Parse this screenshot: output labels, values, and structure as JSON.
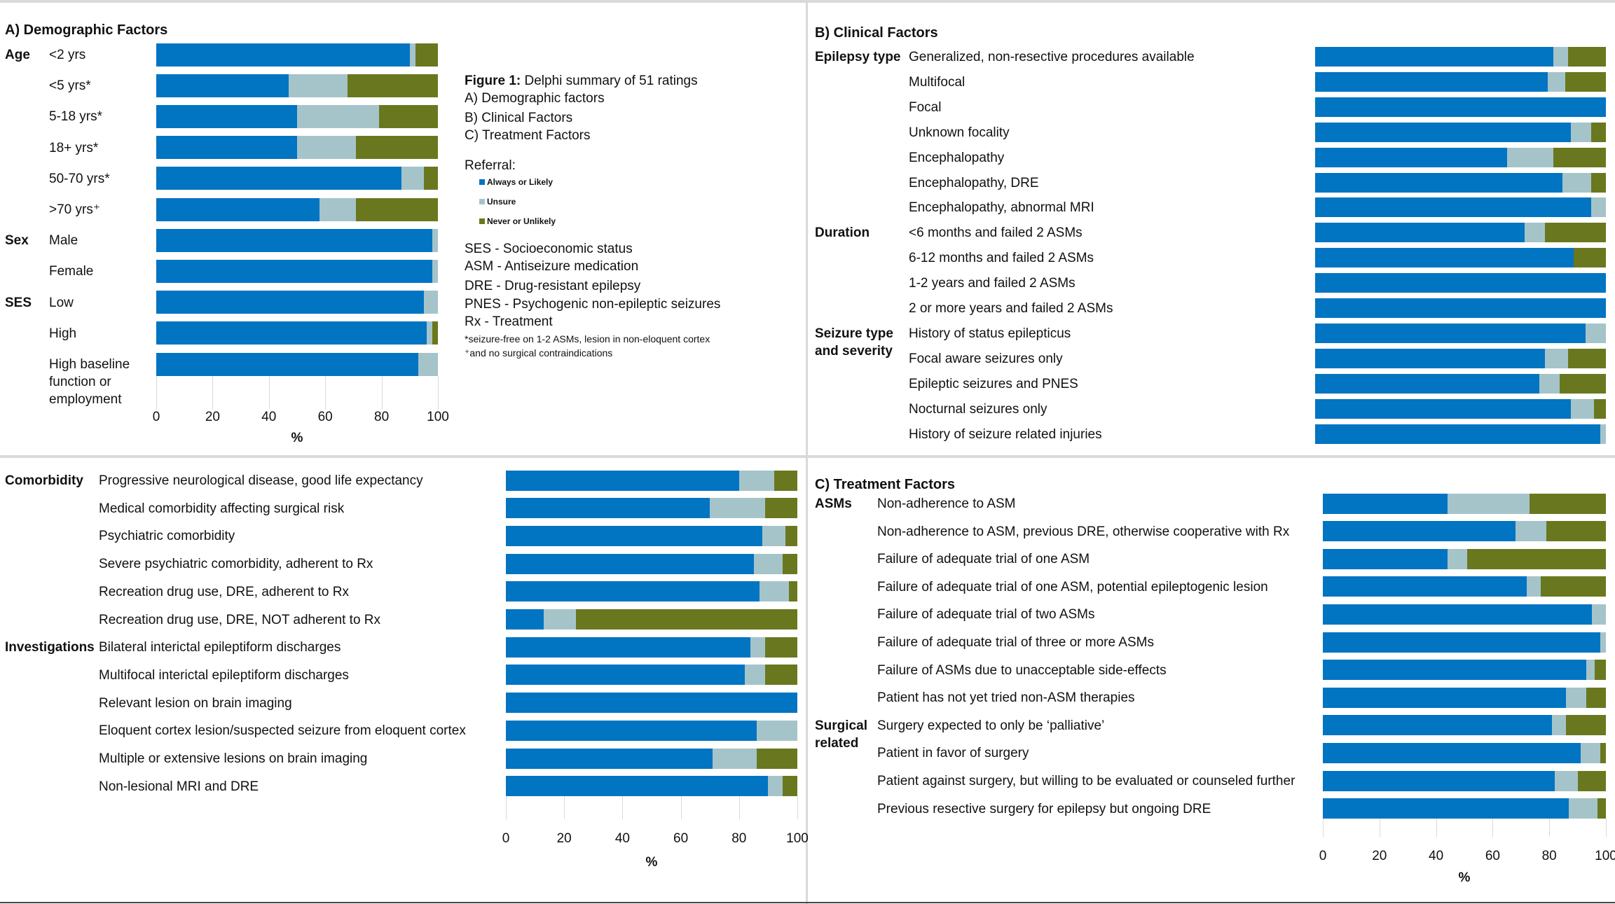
{
  "caption": {
    "figure_label": "Figure 1:",
    "figure_text": " Delphi summary of 51 ratings",
    "parts": [
      "A)   Demographic factors",
      "B)   Clinical Factors",
      "C)   Treatment Factors"
    ]
  },
  "legend": {
    "title": "Referral:",
    "items": [
      {
        "label": "Always or Likely",
        "color": "#0174c2"
      },
      {
        "label": "Unsure",
        "color": "#a5c4ca"
      },
      {
        "label": "Never or Unlikely",
        "color": "#69781e"
      }
    ]
  },
  "abbreviations": [
    "SES - Socioeconomic status",
    "ASM - Antiseizure medication",
    "DRE - Drug-resistant epilepsy",
    "PNES - Psychogenic non-epileptic seizures",
    "Rx - Treatment"
  ],
  "footnotes": [
    "*seizure-free on 1-2 ASMs, lesion in non-eloquent cortex",
    "⁺and no surgical contraindications"
  ],
  "chart_data": [
    {
      "type": "bar",
      "orientation": "horizontal",
      "stacked": true,
      "title": "A) Demographic Factors",
      "series": [
        "Always or Likely",
        "Unsure",
        "Never or Unlikely"
      ],
      "xlabel": "%",
      "xlim": [
        0,
        100
      ],
      "xticks": [
        "0",
        "20",
        "40",
        "60",
        "80",
        "100"
      ],
      "grid": true,
      "groups": [
        {
          "label": "Age",
          "rows": [
            {
              "label": "<2 yrs",
              "values": [
                90,
                2,
                8
              ]
            },
            {
              "label": "<5 yrs*",
              "values": [
                47,
                21,
                32
              ]
            },
            {
              "label": "5-18 yrs*",
              "values": [
                50,
                29,
                21
              ]
            },
            {
              "label": "18+ yrs*",
              "values": [
                50,
                21,
                29
              ]
            },
            {
              "label": "50-70 yrs*",
              "values": [
                87,
                8,
                5
              ]
            },
            {
              "label": ">70 yrs⁺",
              "values": [
                58,
                13,
                29
              ]
            }
          ]
        },
        {
          "label": "Sex",
          "rows": [
            {
              "label": "Male",
              "values": [
                98,
                2,
                0
              ]
            },
            {
              "label": "Female",
              "values": [
                98,
                2,
                0
              ]
            }
          ]
        },
        {
          "label": "SES",
          "rows": [
            {
              "label": "Low",
              "values": [
                95,
                5,
                0
              ]
            },
            {
              "label": "High",
              "values": [
                96,
                2,
                2
              ]
            },
            {
              "label": "High baseline function or employment",
              "values": [
                93,
                7,
                0
              ]
            }
          ]
        }
      ]
    },
    {
      "type": "bar",
      "orientation": "horizontal",
      "stacked": true,
      "title": "B) Clinical Factors",
      "series": [
        "Always or Likely",
        "Unsure",
        "Never or Unlikely"
      ],
      "xlim": [
        0,
        100
      ],
      "grid": false,
      "groups": [
        {
          "label": "Epilepsy type",
          "rows": [
            {
              "label": "Generalized, non-resective procedures available",
              "values": [
                82,
                5,
                13
              ]
            },
            {
              "label": "Multifocal",
              "values": [
                80,
                6,
                14
              ]
            },
            {
              "label": "Focal",
              "values": [
                100,
                0,
                0
              ]
            },
            {
              "label": "Unknown focality",
              "values": [
                88,
                7,
                5
              ]
            },
            {
              "label": "Encephalopathy",
              "values": [
                66,
                16,
                18
              ]
            },
            {
              "label": "Encephalopathy, DRE",
              "values": [
                85,
                10,
                5
              ]
            },
            {
              "label": "Encephalopathy, abnormal MRI",
              "values": [
                95,
                5,
                0
              ]
            }
          ]
        },
        {
          "label": "Duration",
          "rows": [
            {
              "label": "<6 months and failed 2 ASMs",
              "values": [
                72,
                7,
                21
              ]
            },
            {
              "label": "6-12 months and failed 2 ASMs",
              "values": [
                89,
                0,
                11
              ]
            },
            {
              "label": "1-2 years and failed 2 ASMs",
              "values": [
                100,
                0,
                0
              ]
            },
            {
              "label": "2 or more years and failed 2 ASMs",
              "values": [
                100,
                0,
                0
              ]
            }
          ]
        },
        {
          "label": "Seizure type and severity",
          "rows": [
            {
              "label": "History of status epilepticus",
              "values": [
                93,
                7,
                0
              ]
            },
            {
              "label": "Focal aware seizures only",
              "values": [
                79,
                8,
                13
              ]
            },
            {
              "label": "Epileptic seizures and PNES",
              "values": [
                77,
                7,
                16
              ]
            },
            {
              "label": "Nocturnal seizures only",
              "values": [
                88,
                8,
                4
              ]
            },
            {
              "label": "History of seizure related injuries",
              "values": [
                98,
                2,
                0
              ]
            }
          ]
        }
      ]
    },
    {
      "type": "bar",
      "orientation": "horizontal",
      "stacked": true,
      "title": "",
      "series": [
        "Always or Likely",
        "Unsure",
        "Never or Unlikely"
      ],
      "xlabel": "%",
      "xlim": [
        0,
        100
      ],
      "xticks": [
        "0",
        "20",
        "40",
        "60",
        "80",
        "100"
      ],
      "grid": true,
      "groups": [
        {
          "label": "Comorbidity",
          "rows": [
            {
              "label": "Progressive neurological disease, good life expectancy",
              "values": [
                80,
                12,
                8
              ]
            },
            {
              "label": "Medical comorbidity affecting surgical risk",
              "values": [
                70,
                19,
                11
              ]
            },
            {
              "label": "Psychiatric comorbidity",
              "values": [
                88,
                8,
                4
              ]
            },
            {
              "label": "Severe psychiatric comorbidity, adherent to Rx",
              "values": [
                85,
                10,
                5
              ]
            },
            {
              "label": "Recreation drug use, DRE, adherent to Rx",
              "values": [
                87,
                10,
                3
              ]
            },
            {
              "label": "Recreation drug use, DRE, NOT adherent to Rx",
              "values": [
                13,
                11,
                76
              ]
            }
          ]
        },
        {
          "label": "Investigations",
          "rows": [
            {
              "label": "Bilateral interictal epileptiform discharges",
              "values": [
                84,
                5,
                11
              ]
            },
            {
              "label": "Multifocal interictal epileptiform discharges",
              "values": [
                82,
                7,
                11
              ]
            },
            {
              "label": "Relevant lesion on brain imaging",
              "values": [
                100,
                0,
                0
              ]
            },
            {
              "label": "Eloquent cortex lesion/suspected seizure from eloquent cortex",
              "values": [
                86,
                14,
                0
              ]
            },
            {
              "label": "Multiple or extensive lesions on brain imaging",
              "values": [
                71,
                15,
                14
              ]
            },
            {
              "label": "Non-lesional MRI and DRE",
              "values": [
                90,
                5,
                5
              ]
            }
          ]
        }
      ]
    },
    {
      "type": "bar",
      "orientation": "horizontal",
      "stacked": true,
      "title": "C) Treatment  Factors",
      "series": [
        "Always or Likely",
        "Unsure",
        "Never or Unlikely"
      ],
      "xlabel": "%",
      "xlim": [
        0,
        100
      ],
      "xticks": [
        "0",
        "20",
        "40",
        "60",
        "80",
        "100"
      ],
      "grid": true,
      "groups": [
        {
          "label": "ASMs",
          "rows": [
            {
              "label": "Non-adherence to ASM",
              "values": [
                44,
                29,
                27
              ]
            },
            {
              "label": "Non-adherence to ASM, previous DRE, otherwise cooperative with Rx",
              "values": [
                68,
                11,
                21
              ]
            },
            {
              "label": "Failure of adequate trial of one ASM",
              "values": [
                44,
                7,
                49
              ]
            },
            {
              "label": "Failure of adequate trial of one ASM, potential epileptogenic lesion",
              "values": [
                72,
                5,
                23
              ]
            },
            {
              "label": "Failure of adequate trial of two ASMs",
              "values": [
                95,
                5,
                0
              ]
            },
            {
              "label": "Failure of adequate trial of three or more ASMs",
              "values": [
                98,
                2,
                0
              ]
            },
            {
              "label": "Failure of ASMs due to unacceptable side-effects",
              "values": [
                93,
                3,
                4
              ]
            },
            {
              "label": "Patient has not yet tried non-ASM therapies",
              "values": [
                86,
                7,
                7
              ]
            }
          ]
        },
        {
          "label": "Surgical related",
          "rows": [
            {
              "label": "Surgery expected to only be ‘palliative’",
              "values": [
                81,
                5,
                14
              ]
            },
            {
              "label": "Patient in favor of surgery",
              "values": [
                91,
                7,
                2
              ]
            },
            {
              "label": "Patient against surgery, but willing to be evaluated or counseled further",
              "values": [
                82,
                8,
                10
              ]
            },
            {
              "label": "Previous resective surgery for epilepsy but ongoing DRE",
              "values": [
                87,
                10,
                3
              ]
            }
          ]
        }
      ]
    }
  ]
}
